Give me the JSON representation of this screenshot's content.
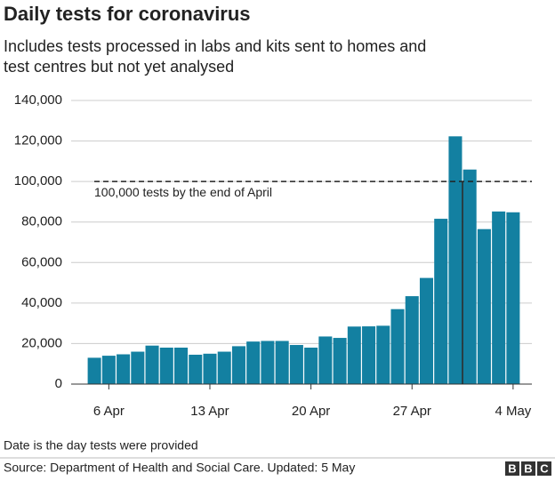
{
  "chart_data": {
    "type": "bar",
    "title": "Daily tests for coronavirus",
    "subtitle": [
      "Includes tests processed in labs and kits sent to homes and",
      "test centres but not yet analysed"
    ],
    "categories": [
      null,
      "6 Apr",
      null,
      null,
      null,
      null,
      null,
      null,
      "13 Apr",
      null,
      null,
      null,
      null,
      null,
      null,
      "20 Apr",
      null,
      null,
      null,
      null,
      null,
      null,
      "27 Apr",
      null,
      null,
      null,
      null,
      null,
      null,
      "4 May"
    ],
    "values": [
      13000,
      14000,
      14700,
      16000,
      19000,
      18000,
      18000,
      14500,
      15000,
      16000,
      18700,
      21000,
      21300,
      21300,
      19300,
      18000,
      23500,
      22800,
      28400,
      28500,
      28800,
      37000,
      43400,
      52400,
      81600,
      122300,
      105900,
      76500,
      85200,
      84800
    ],
    "color": "#1380a1",
    "ylim": [
      0,
      140000
    ],
    "yticks": [
      0,
      {
        "value": 20000,
        "label": "20,000"
      },
      {
        "value": 40000,
        "label": "40,000"
      },
      {
        "value": 60000,
        "label": "60,000"
      },
      {
        "value": 80000,
        "label": "80,000"
      },
      {
        "value": 100000,
        "label": "100,000"
      },
      {
        "value": 120000,
        "label": "120,000"
      },
      {
        "value": 140000,
        "label": "140,000"
      }
    ],
    "grid": true,
    "target": {
      "value": 100000,
      "label": "100,000 tests by the end of April"
    },
    "note": "Date is the day tests were provided",
    "source": "Source: Department of Health and Social Care. Updated: 5 May",
    "logo": [
      "B",
      "B",
      "C"
    ]
  }
}
